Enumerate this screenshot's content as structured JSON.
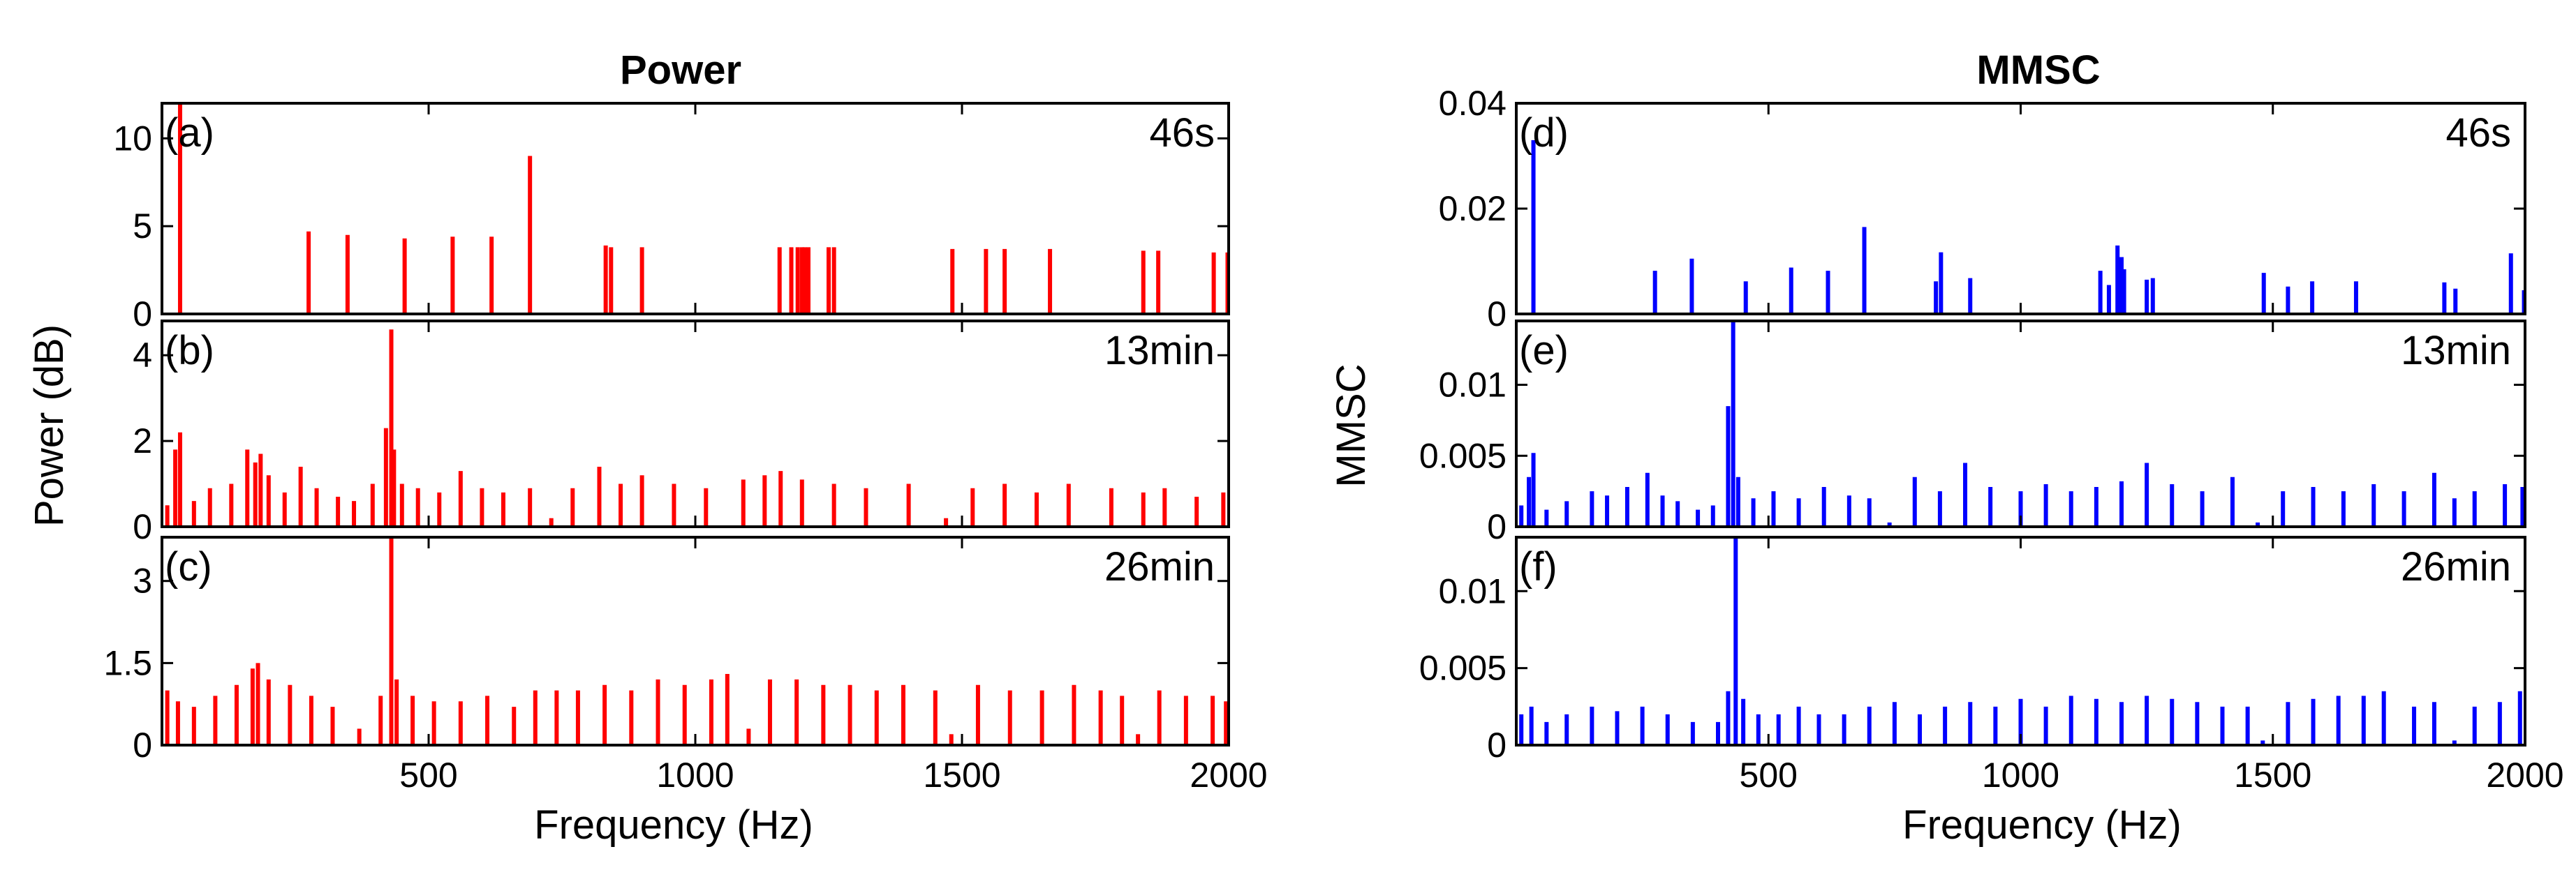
{
  "figure": {
    "colors": {
      "power": "#ff0000",
      "mmsc": "#0000ff",
      "axes": "#000000"
    }
  },
  "chart_data": [
    {
      "type": "bar",
      "id": "a",
      "group": "power",
      "title": "Power",
      "panel_label": "(a)",
      "time_label": "46s",
      "xlabel": "",
      "ylabel": "Power (dB)",
      "xlim": [
        0,
        2000
      ],
      "ylim": [
        0,
        12
      ],
      "xticks": [
        500,
        1000,
        1500,
        2000
      ],
      "xtick_labels": [
        "",
        "",
        "",
        ""
      ],
      "yticks": [
        0,
        5,
        10
      ],
      "ytick_labels": [
        "0",
        "5",
        "10"
      ],
      "x": [
        34,
        275,
        348,
        455,
        545,
        618,
        690,
        832,
        842,
        900,
        1158,
        1180,
        1192,
        1200,
        1205,
        1212,
        1250,
        1260,
        1482,
        1545,
        1580,
        1665,
        1840,
        1868,
        1972,
        1998
      ],
      "y": [
        12,
        4.7,
        4.5,
        4.3,
        4.4,
        4.4,
        9.0,
        3.9,
        3.8,
        3.8,
        3.8,
        3.8,
        3.8,
        3.8,
        3.8,
        3.8,
        3.8,
        3.8,
        3.7,
        3.7,
        3.7,
        3.7,
        3.6,
        3.6,
        3.5,
        3.5
      ]
    },
    {
      "type": "bar",
      "id": "b",
      "group": "power",
      "panel_label": "(b)",
      "time_label": "13min",
      "xlim": [
        0,
        2000
      ],
      "ylim": [
        0,
        4.8
      ],
      "xticks": [
        500,
        1000,
        1500,
        2000
      ],
      "xtick_labels": [
        "",
        "",
        "",
        ""
      ],
      "yticks": [
        0,
        2,
        4
      ],
      "ytick_labels": [
        "0",
        "2",
        "4"
      ],
      "x": [
        10,
        25,
        34,
        60,
        90,
        130,
        160,
        175,
        185,
        200,
        230,
        260,
        290,
        330,
        360,
        395,
        420,
        430,
        435,
        450,
        480,
        520,
        560,
        600,
        640,
        690,
        730,
        770,
        820,
        860,
        900,
        960,
        1020,
        1090,
        1130,
        1160,
        1200,
        1260,
        1320,
        1400,
        1470,
        1520,
        1580,
        1640,
        1700,
        1780,
        1840,
        1880,
        1940,
        1990
      ],
      "y": [
        0.5,
        1.8,
        2.2,
        0.6,
        0.9,
        1.0,
        1.8,
        1.5,
        1.7,
        1.2,
        0.8,
        1.4,
        0.9,
        0.7,
        0.6,
        1.0,
        2.3,
        4.6,
        1.8,
        1.0,
        0.9,
        0.8,
        1.3,
        0.9,
        0.8,
        0.9,
        0.2,
        0.9,
        1.4,
        1.0,
        1.2,
        1.0,
        0.9,
        1.1,
        1.2,
        1.3,
        1.1,
        1.0,
        0.9,
        1.0,
        0.2,
        0.9,
        1.0,
        0.8,
        1.0,
        0.9,
        0.8,
        0.9,
        0.7,
        0.8
      ]
    },
    {
      "type": "bar",
      "id": "c",
      "group": "power",
      "panel_label": "(c)",
      "time_label": "26min",
      "xlabel": "Frequency (Hz)",
      "xlim": [
        0,
        2000
      ],
      "ylim": [
        0,
        3.8
      ],
      "xticks": [
        500,
        1000,
        1500,
        2000
      ],
      "xtick_labels": [
        "500",
        "1000",
        "1500",
        "2000"
      ],
      "yticks": [
        0,
        1.5,
        3
      ],
      "ytick_labels": [
        "0",
        "1.5",
        "3"
      ],
      "x": [
        10,
        30,
        60,
        100,
        140,
        170,
        180,
        200,
        240,
        280,
        320,
        370,
        410,
        430,
        440,
        470,
        510,
        560,
        610,
        660,
        700,
        740,
        780,
        830,
        880,
        930,
        980,
        1030,
        1060,
        1100,
        1140,
        1190,
        1240,
        1290,
        1340,
        1390,
        1450,
        1480,
        1530,
        1590,
        1650,
        1710,
        1760,
        1800,
        1830,
        1870,
        1920,
        1970,
        1995
      ],
      "y": [
        1.0,
        0.8,
        0.7,
        0.9,
        1.1,
        1.4,
        1.5,
        1.2,
        1.1,
        0.9,
        0.7,
        0.3,
        0.9,
        3.8,
        1.2,
        0.9,
        0.8,
        0.8,
        0.9,
        0.7,
        1.0,
        1.0,
        1.0,
        1.1,
        1.0,
        1.2,
        1.1,
        1.2,
        1.3,
        0.3,
        1.2,
        1.2,
        1.1,
        1.1,
        1.0,
        1.1,
        1.0,
        0.2,
        1.1,
        1.0,
        1.0,
        1.1,
        1.0,
        0.9,
        0.2,
        1.0,
        0.9,
        0.9,
        0.8
      ]
    },
    {
      "type": "bar",
      "id": "d",
      "group": "mmsc",
      "title": "MMSC",
      "panel_label": "(d)",
      "time_label": "46s",
      "xlabel": "",
      "ylabel": "MMSC",
      "xlim": [
        0,
        2000
      ],
      "ylim": [
        0,
        0.04
      ],
      "xticks": [
        500,
        1000,
        1500,
        2000
      ],
      "xtick_labels": [
        "",
        "",
        "",
        ""
      ],
      "yticks": [
        0,
        0.02,
        0.04
      ],
      "ytick_labels": [
        "0",
        "0.02",
        "0.04"
      ],
      "x": [
        34,
        275,
        348,
        455,
        545,
        618,
        690,
        832,
        842,
        900,
        1158,
        1175,
        1192,
        1200,
        1205,
        1250,
        1262,
        1482,
        1530,
        1578,
        1665,
        1840,
        1862,
        1972,
        1998
      ],
      "y": [
        0.033,
        0.0082,
        0.0105,
        0.0062,
        0.0088,
        0.0082,
        0.0165,
        0.0062,
        0.0117,
        0.0068,
        0.0082,
        0.0055,
        0.013,
        0.0108,
        0.0085,
        0.0065,
        0.0068,
        0.0078,
        0.0052,
        0.0062,
        0.0062,
        0.006,
        0.0048,
        0.0115,
        0.0045
      ]
    },
    {
      "type": "bar",
      "id": "e",
      "group": "mmsc",
      "panel_label": "(e)",
      "time_label": "13min",
      "xlim": [
        0,
        2000
      ],
      "ylim": [
        0,
        0.0145
      ],
      "xticks": [
        500,
        1000,
        1500,
        2000
      ],
      "xtick_labels": [
        "",
        "",
        "",
        ""
      ],
      "yticks": [
        0,
        0.005,
        0.01
      ],
      "ytick_labels": [
        "0",
        "0.005",
        "0.01"
      ],
      "x": [
        10,
        25,
        34,
        60,
        100,
        150,
        180,
        220,
        260,
        290,
        320,
        360,
        390,
        420,
        430,
        440,
        470,
        510,
        560,
        610,
        660,
        700,
        740,
        790,
        840,
        890,
        940,
        1000,
        1050,
        1100,
        1150,
        1200,
        1250,
        1300,
        1360,
        1420,
        1470,
        1520,
        1580,
        1640,
        1700,
        1760,
        1820,
        1860,
        1900,
        1960,
        1995
      ],
      "y": [
        0.0015,
        0.0035,
        0.0052,
        0.0012,
        0.0018,
        0.0025,
        0.0022,
        0.0028,
        0.0038,
        0.0022,
        0.0018,
        0.0012,
        0.0015,
        0.0085,
        0.0145,
        0.0035,
        0.002,
        0.0025,
        0.002,
        0.0028,
        0.0022,
        0.002,
        0.0003,
        0.0035,
        0.0025,
        0.0045,
        0.0028,
        0.0025,
        0.003,
        0.0025,
        0.0028,
        0.0032,
        0.0045,
        0.003,
        0.0025,
        0.0035,
        0.0003,
        0.0025,
        0.0028,
        0.0025,
        0.003,
        0.0025,
        0.0038,
        0.002,
        0.0025,
        0.003,
        0.0028
      ]
    },
    {
      "type": "bar",
      "id": "f",
      "group": "mmsc",
      "panel_label": "(f)",
      "time_label": "26min",
      "xlabel": "Frequency (Hz)",
      "xlim": [
        0,
        2000
      ],
      "ylim": [
        0,
        0.0135
      ],
      "xticks": [
        500,
        1000,
        1500,
        2000
      ],
      "xtick_labels": [
        "500",
        "1000",
        "1500",
        "2000"
      ],
      "yticks": [
        0,
        0.005,
        0.01
      ],
      "ytick_labels": [
        "0",
        "0.005",
        "0.01"
      ],
      "x": [
        10,
        30,
        60,
        100,
        150,
        200,
        250,
        300,
        350,
        400,
        420,
        435,
        450,
        480,
        520,
        560,
        600,
        650,
        700,
        750,
        800,
        850,
        900,
        950,
        1000,
        1050,
        1100,
        1150,
        1200,
        1250,
        1300,
        1350,
        1400,
        1450,
        1480,
        1530,
        1580,
        1630,
        1680,
        1720,
        1780,
        1820,
        1860,
        1900,
        1950,
        1990
      ],
      "y": [
        0.002,
        0.0025,
        0.0015,
        0.002,
        0.0025,
        0.0022,
        0.0025,
        0.002,
        0.0015,
        0.0015,
        0.0035,
        0.0135,
        0.003,
        0.002,
        0.002,
        0.0025,
        0.002,
        0.002,
        0.0025,
        0.0028,
        0.002,
        0.0025,
        0.0028,
        0.0025,
        0.003,
        0.0025,
        0.0032,
        0.003,
        0.0028,
        0.0032,
        0.003,
        0.0028,
        0.0025,
        0.0025,
        0.0003,
        0.0028,
        0.003,
        0.0032,
        0.0032,
        0.0035,
        0.0025,
        0.0028,
        0.0003,
        0.0025,
        0.0028,
        0.0035
      ]
    }
  ]
}
